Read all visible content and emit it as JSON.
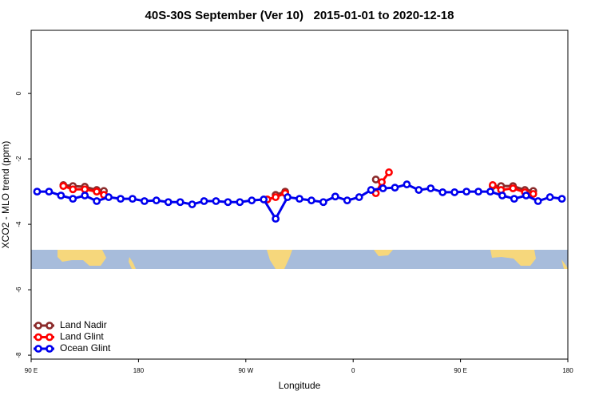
{
  "chart_data": {
    "type": "line",
    "title": "40S-30S September (Ver 10)   2015-01-01 to 2020-12-18",
    "x_label": "Longitude",
    "y_label": "XCO2 - MLO trend (ppm)",
    "xlim": [
      90,
      540
    ],
    "ylim": [
      -8.12,
      1.93
    ],
    "xticks": [
      {
        "value": 90,
        "label": "90 E"
      },
      180,
      {
        "value": 270,
        "label": "90 W"
      },
      {
        "value": 360,
        "label": "0"
      },
      {
        "value": 450,
        "label": "90 E"
      },
      {
        "value": 540,
        "label": "180"
      }
    ],
    "yticks": [
      -8,
      -6,
      -4,
      -2,
      0
    ],
    "legend": "bottom-left",
    "series": [
      {
        "name": "Land Nadir",
        "color": "#8b2b2b",
        "x": [
          117,
          125,
          135,
          145,
          151,
          null,
          295,
          303,
          null,
          379,
          null,
          477,
          484,
          494,
          504,
          511
        ],
        "values": [
          -2.8,
          -2.83,
          -2.85,
          -2.95,
          -2.98,
          null,
          -3.1,
          -3.0,
          null,
          -2.63,
          null,
          -2.83,
          -2.83,
          -2.83,
          -2.95,
          -2.98
        ]
      },
      {
        "name": "Land Glint",
        "color": "#ff0000",
        "x": [
          117,
          125,
          135,
          145,
          151,
          null,
          288,
          295,
          303,
          null,
          379,
          384,
          390,
          null,
          477,
          484,
          494,
          504,
          511
        ],
        "values": [
          -2.83,
          -2.93,
          -2.93,
          -3.0,
          -3.1,
          null,
          -3.24,
          -3.17,
          -3.05,
          null,
          -3.05,
          -2.71,
          -2.41,
          null,
          -2.8,
          -2.95,
          -2.9,
          -3.02,
          -3.07
        ]
      },
      {
        "name": "Ocean Glint",
        "color": "#0000ee",
        "x": [
          95,
          105,
          115,
          125,
          135,
          145,
          155,
          165,
          175,
          185,
          195,
          205,
          215,
          225,
          235,
          245,
          255,
          265,
          275,
          285,
          295,
          305,
          315,
          325,
          335,
          345,
          355,
          365,
          375,
          385,
          395,
          405,
          415,
          425,
          435,
          445,
          455,
          465,
          475,
          485,
          495,
          505,
          515,
          525,
          535
        ],
        "values": [
          -3.0,
          -3.0,
          -3.12,
          -3.22,
          -3.12,
          -3.29,
          -3.17,
          -3.22,
          -3.22,
          -3.29,
          -3.27,
          -3.32,
          -3.32,
          -3.39,
          -3.29,
          -3.29,
          -3.32,
          -3.32,
          -3.27,
          -3.24,
          -3.83,
          -3.17,
          -3.22,
          -3.27,
          -3.32,
          -3.15,
          -3.27,
          -3.17,
          -2.95,
          -2.9,
          -2.88,
          -2.78,
          -2.95,
          -2.9,
          -3.02,
          -3.02,
          -3.0,
          -3.0,
          -3.0,
          -3.12,
          -3.22,
          -3.12,
          -3.29,
          -3.17,
          -3.22
        ]
      }
    ]
  }
}
